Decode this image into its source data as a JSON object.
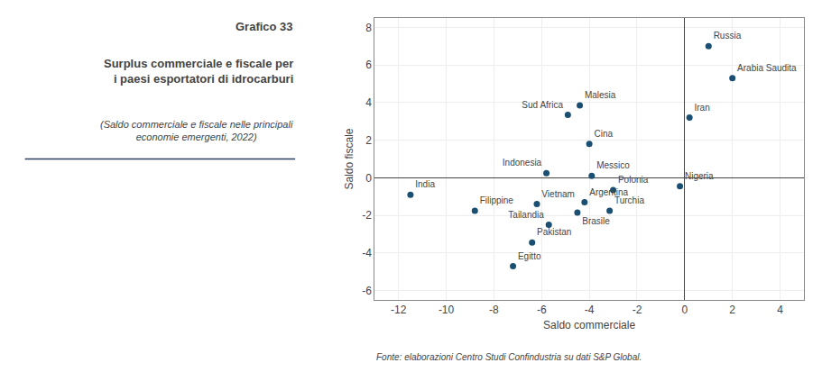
{
  "chart_data": {
    "type": "scatter",
    "title": "Surplus commerciale e fiscale per\ni paesi esportatori di idrocarburi",
    "subtitle": "(Saldo commerciale e fiscale nelle principali\neconomie emergenti, 2022)",
    "annotations": [
      "Grafico 33",
      "Fonte: elaborazioni Centro Studi Confindustria su dati S&P Global."
    ],
    "labels": [
      "Russia",
      "Arabia Saudita",
      "Iran",
      "Malesia",
      "Sud Africa",
      "Cina",
      "Indonesia",
      "Messico",
      "India",
      "Filippine",
      "Vietnam",
      "Argentina",
      "Polonia",
      "Nigeria",
      "Brasile",
      "Turchia",
      "Tailandia",
      "Pakistan",
      "Egitto"
    ],
    "x": [
      1.0,
      2.0,
      0.2,
      -4.4,
      -4.9,
      -4.0,
      -5.8,
      -3.9,
      -11.5,
      -8.8,
      -6.2,
      -4.2,
      -3.0,
      -0.2,
      -4.5,
      -3.15,
      -5.7,
      -6.4,
      -7.2
    ],
    "values": [
      7.0,
      5.3,
      3.2,
      3.85,
      3.35,
      1.8,
      0.25,
      0.1,
      -0.9,
      -1.75,
      -1.4,
      -1.3,
      -0.65,
      -0.45,
      -1.85,
      -1.75,
      -2.5,
      -3.45,
      -4.7
    ],
    "color": "#1b4f72",
    "xlabel": "Saldo commerciale",
    "ylabel": "Saldo fiscale",
    "xlim": [
      -13,
      5
    ],
    "ylim": [
      -6.5,
      8.5
    ],
    "xticks": [
      -12,
      -10,
      -8,
      -6,
      -4,
      -2,
      0,
      2,
      4
    ],
    "yticks": [
      -6,
      -4,
      -2,
      0,
      2,
      4,
      6,
      8
    ],
    "grid": true
  }
}
